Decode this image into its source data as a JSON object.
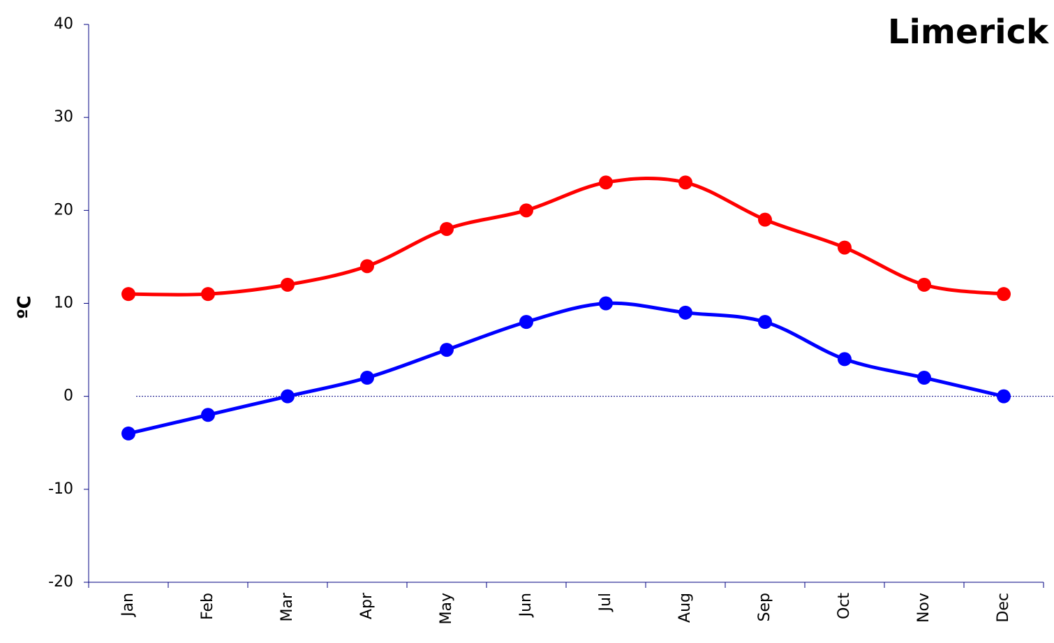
{
  "chart_data": {
    "type": "line",
    "title": "Limerick",
    "y_label": "ºC",
    "categories": [
      "Jan",
      "Feb",
      "Mar",
      "Apr",
      "May",
      "Jun",
      "Jul",
      "Aug",
      "Sep",
      "Oct",
      "Nov",
      "Dec"
    ],
    "series": [
      {
        "color": "#ff0000",
        "values": [
          11,
          11,
          12,
          14,
          18,
          20,
          23,
          23,
          19,
          16,
          12,
          11
        ]
      },
      {
        "color": "#0000ff",
        "values": [
          -4,
          -2,
          0,
          2,
          5,
          8,
          10,
          9,
          8,
          4,
          2,
          0
        ]
      }
    ],
    "ylim": [
      -20,
      40
    ],
    "yticks": [
      -20,
      -10,
      0,
      10,
      20,
      30,
      40
    ],
    "hline": 0,
    "smooth": true
  }
}
